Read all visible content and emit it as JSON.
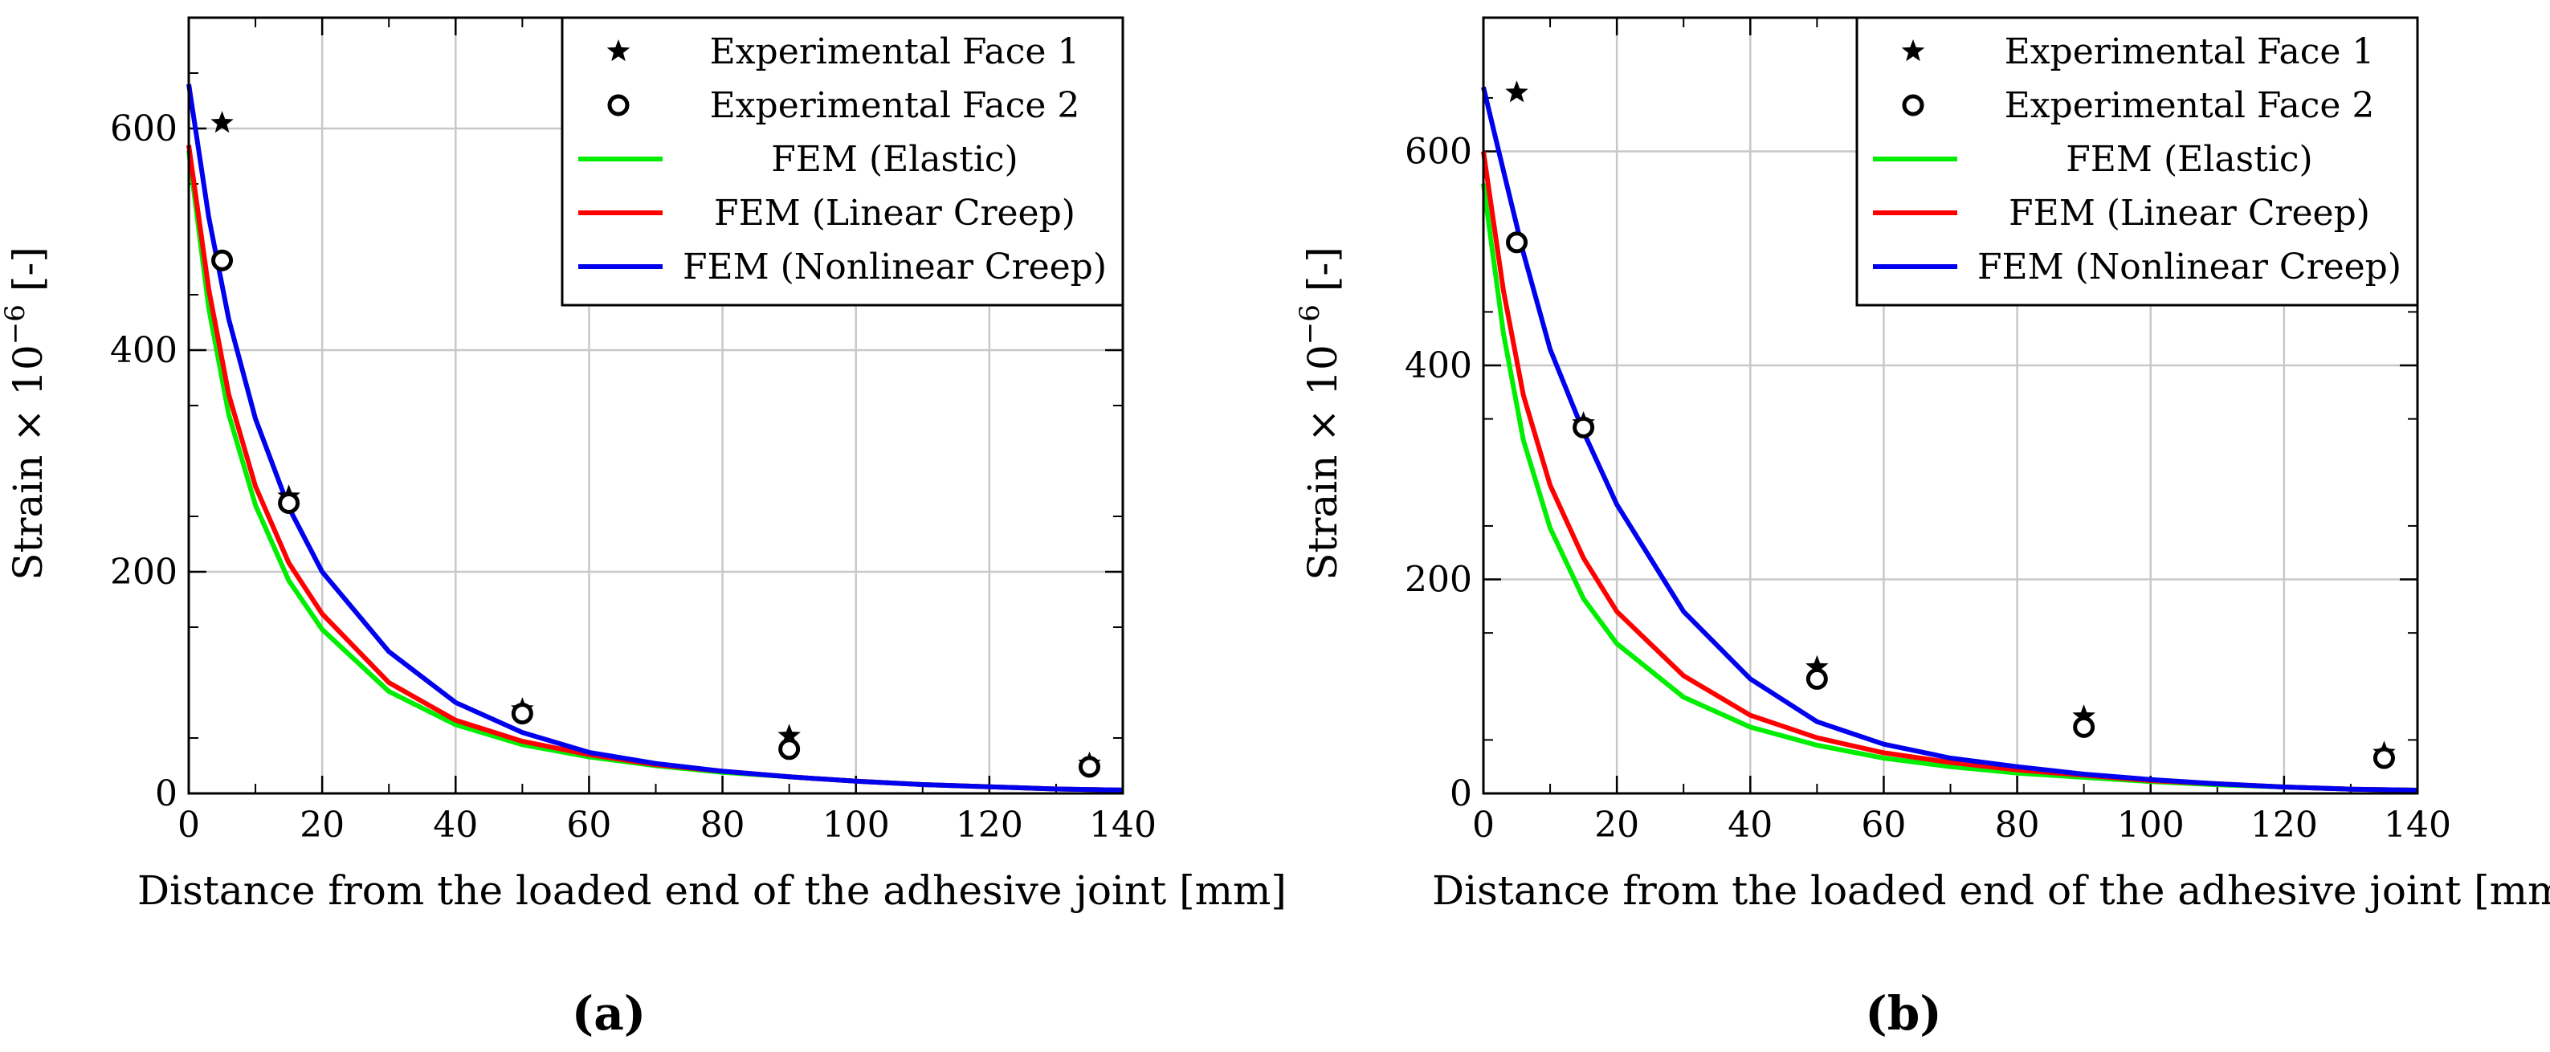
{
  "chart_data": [
    {
      "type": "line",
      "panel_label": "(a)",
      "xlabel": "Distance from the loaded end of the adhesive joint [mm]",
      "ylabel_main": "Strain × 10",
      "ylabel_exp": "−6",
      "ylabel_unit": " [-]",
      "xlim": [
        0,
        140
      ],
      "ylim": [
        0,
        700
      ],
      "xticks": [
        0,
        20,
        40,
        60,
        80,
        100,
        120,
        140
      ],
      "xtick_labels": [
        "0",
        "20",
        "40",
        "60",
        "80",
        "100",
        "120",
        "140"
      ],
      "yticks": [
        0,
        200,
        400,
        600
      ],
      "ytick_labels": [
        "0",
        "200",
        "400",
        "600"
      ],
      "grid": true,
      "legend_position": "top-right",
      "series": [
        {
          "name": "Experimental Face 1",
          "kind": "marker",
          "marker": "star",
          "color": "#000000",
          "x": [
            5,
            15,
            50,
            90,
            135
          ],
          "y": [
            605,
            268,
            76,
            52,
            27
          ]
        },
        {
          "name": "Experimental Face 2",
          "kind": "marker",
          "marker": "circle",
          "color": "#000000",
          "x": [
            5,
            15,
            50,
            90,
            135
          ],
          "y": [
            481,
            262,
            72,
            40,
            24
          ]
        },
        {
          "name": "FEM (Elastic)",
          "kind": "line",
          "color": "#00ee00",
          "x": [
            0,
            3,
            6,
            10,
            15,
            20,
            30,
            40,
            50,
            60,
            70,
            80,
            90,
            100,
            110,
            120,
            130,
            140
          ],
          "y": [
            580,
            438,
            342,
            260,
            192,
            148,
            92,
            62,
            44,
            33,
            25,
            19,
            15,
            11,
            8,
            6,
            4,
            3
          ]
        },
        {
          "name": "FEM (Linear Creep)",
          "kind": "line",
          "color": "#ff0000",
          "x": [
            0,
            3,
            6,
            10,
            15,
            20,
            30,
            40,
            50,
            60,
            70,
            80,
            90,
            100,
            110,
            120,
            130,
            140
          ],
          "y": [
            585,
            455,
            360,
            277,
            208,
            162,
            100,
            66,
            47,
            35,
            26,
            20,
            15,
            11,
            8,
            6,
            4,
            3
          ]
        },
        {
          "name": "FEM (Nonlinear Creep)",
          "kind": "line",
          "color": "#0000ee",
          "x": [
            0,
            3,
            6,
            10,
            15,
            20,
            30,
            40,
            50,
            60,
            70,
            80,
            90,
            100,
            110,
            120,
            130,
            140
          ],
          "y": [
            640,
            520,
            428,
            338,
            258,
            200,
            128,
            82,
            55,
            37,
            27,
            20,
            15,
            11,
            8,
            6,
            4,
            3
          ]
        }
      ]
    },
    {
      "type": "line",
      "panel_label": "(b)",
      "xlabel": "Distance from the loaded end of the adhesive joint [mm]",
      "ylabel_main": "Strain × 10",
      "ylabel_exp": "−6",
      "ylabel_unit": " [-]",
      "xlim": [
        0,
        140
      ],
      "ylim": [
        0,
        725
      ],
      "xticks": [
        0,
        20,
        40,
        60,
        80,
        100,
        120,
        140
      ],
      "xtick_labels": [
        "0",
        "20",
        "40",
        "60",
        "80",
        "100",
        "120",
        "140"
      ],
      "yticks": [
        0,
        200,
        400,
        600
      ],
      "ytick_labels": [
        "0",
        "200",
        "400",
        "600"
      ],
      "grid": true,
      "legend_position": "top-right",
      "series": [
        {
          "name": "Experimental Face 1",
          "kind": "marker",
          "marker": "star",
          "color": "#000000",
          "x": [
            5,
            15,
            50,
            90,
            135
          ],
          "y": [
            655,
            346,
            118,
            72,
            38
          ]
        },
        {
          "name": "Experimental Face 2",
          "kind": "marker",
          "marker": "circle",
          "color": "#000000",
          "x": [
            5,
            15,
            50,
            90,
            135
          ],
          "y": [
            515,
            342,
            107,
            62,
            33
          ]
        },
        {
          "name": "FEM (Elastic)",
          "kind": "line",
          "color": "#00ee00",
          "x": [
            0,
            3,
            6,
            10,
            15,
            20,
            30,
            40,
            50,
            60,
            70,
            80,
            90,
            100,
            110,
            120,
            130,
            140
          ],
          "y": [
            570,
            430,
            330,
            248,
            182,
            140,
            90,
            62,
            45,
            33,
            25,
            19,
            15,
            11,
            8,
            6,
            4,
            3
          ]
        },
        {
          "name": "FEM (Linear Creep)",
          "kind": "line",
          "color": "#ff0000",
          "x": [
            0,
            3,
            6,
            10,
            15,
            20,
            30,
            40,
            50,
            60,
            70,
            80,
            90,
            100,
            110,
            120,
            130,
            140
          ],
          "y": [
            600,
            470,
            372,
            288,
            220,
            170,
            110,
            73,
            52,
            38,
            29,
            22,
            17,
            12,
            9,
            6,
            4,
            3
          ]
        },
        {
          "name": "FEM (Nonlinear Creep)",
          "kind": "line",
          "color": "#0000ee",
          "x": [
            0,
            3,
            6,
            10,
            15,
            20,
            30,
            40,
            50,
            60,
            70,
            80,
            90,
            100,
            110,
            120,
            130,
            140
          ],
          "y": [
            660,
            582,
            505,
            415,
            338,
            270,
            170,
            107,
            67,
            46,
            33,
            25,
            18,
            13,
            9,
            6,
            4,
            3
          ]
        }
      ]
    }
  ]
}
